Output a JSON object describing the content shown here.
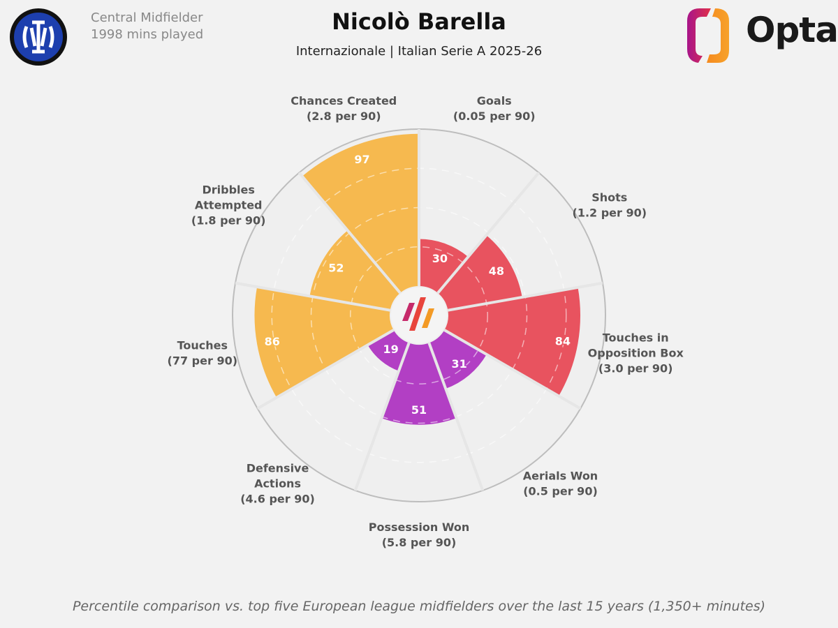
{
  "header": {
    "player": "Nicolò Barella",
    "team_league": "Internazionale | Italian Serie A 2025-26",
    "position": "Central Midfielder",
    "minutes": "1998 mins played",
    "brand": "Opta"
  },
  "footer": "Percentile comparison vs. top five European league midfielders over the last 15 years (1,350+ minutes)",
  "chart_data": {
    "type": "pizza",
    "range": [
      0,
      100
    ],
    "rings": [
      25,
      50,
      75,
      100
    ],
    "colors": {
      "attacking": "#e8535f",
      "defending": "#b23fc4",
      "possession": "#f6b94f"
    },
    "categories": [
      {
        "name": "Goals",
        "label": [
          "Goals"
        ],
        "per90": "(0.05 per 90)",
        "percentile": 30,
        "group": "attacking"
      },
      {
        "name": "Shots",
        "label": [
          "Shots"
        ],
        "per90": "(1.2 per 90)",
        "percentile": 48,
        "group": "attacking"
      },
      {
        "name": "Touches in Opposition Box",
        "label": [
          "Touches in",
          "Opposition Box"
        ],
        "per90": "(3.0 per 90)",
        "percentile": 84,
        "group": "attacking"
      },
      {
        "name": "Aerials Won",
        "label": [
          "Aerials Won"
        ],
        "per90": "(0.5 per 90)",
        "percentile": 31,
        "group": "defending"
      },
      {
        "name": "Possession Won",
        "label": [
          "Possession Won"
        ],
        "per90": "(5.8 per 90)",
        "percentile": 51,
        "group": "defending"
      },
      {
        "name": "Defensive Actions",
        "label": [
          "Defensive",
          "Actions"
        ],
        "per90": "(4.6 per 90)",
        "percentile": 19,
        "group": "defending"
      },
      {
        "name": "Touches",
        "label": [
          "Touches"
        ],
        "per90": "(77 per 90)",
        "percentile": 86,
        "group": "possession"
      },
      {
        "name": "Dribbles Attempted",
        "label": [
          "Dribbles",
          "Attempted"
        ],
        "per90": "(1.8 per 90)",
        "percentile": 52,
        "group": "possession"
      },
      {
        "name": "Chances Created",
        "label": [
          "Chances Created"
        ],
        "per90": "(2.8 per 90)",
        "percentile": 97,
        "group": "possession"
      }
    ]
  }
}
